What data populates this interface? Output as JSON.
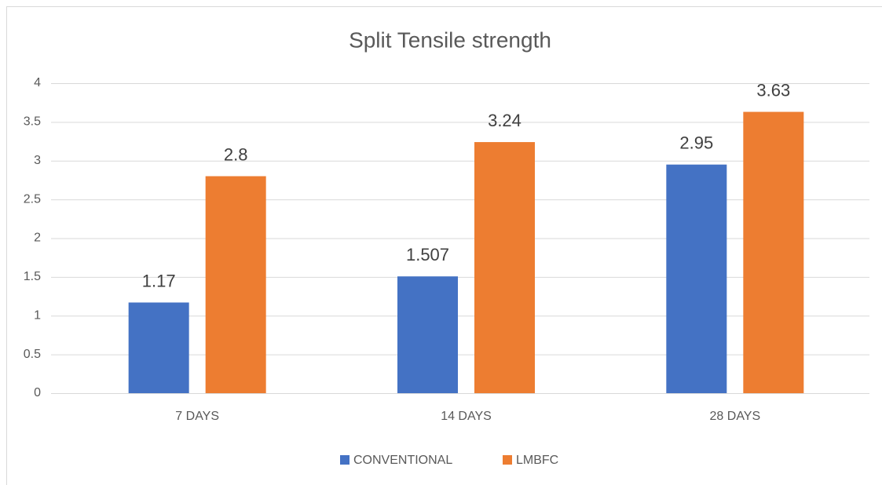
{
  "chart_data": {
    "type": "bar",
    "title": "Split Tensile strength",
    "categories": [
      "7 DAYS",
      "14 DAYS",
      "28 DAYS"
    ],
    "series": [
      {
        "name": "CONVENTIONAL",
        "color": "#4472c4",
        "values": [
          1.17,
          1.507,
          2.95
        ]
      },
      {
        "name": "LMBFC",
        "color": "#ed7d31",
        "values": [
          2.8,
          3.24,
          3.63
        ]
      }
    ],
    "ylim": [
      0,
      4
    ],
    "yticks": [
      0,
      0.5,
      1,
      1.5,
      2,
      2.5,
      3,
      3.5,
      4
    ],
    "grid": true,
    "legend": "bottom"
  }
}
